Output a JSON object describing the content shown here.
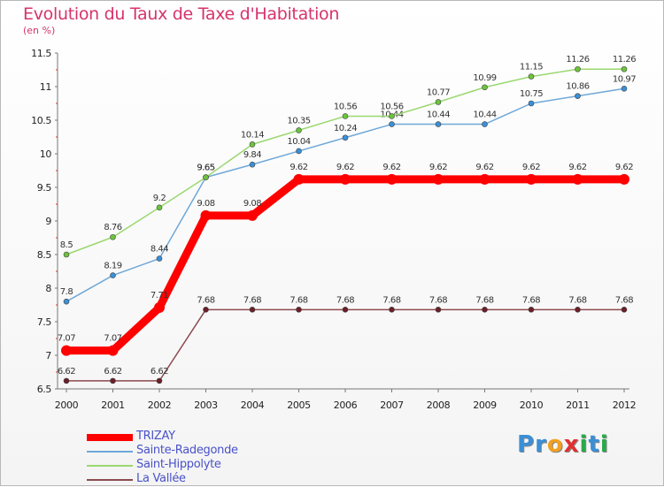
{
  "header": {
    "title": "Evolution du Taux de Taxe d'Habitation",
    "subtitle": "(en %)"
  },
  "logo": {
    "text": "Proxiti",
    "letters": [
      {
        "ch": "P",
        "color": "#3a8fd6"
      },
      {
        "ch": "r",
        "color": "#3a8fd6"
      },
      {
        "ch": "o",
        "color": "#f0a020"
      },
      {
        "ch": "x",
        "color": "#e03030"
      },
      {
        "ch": "i",
        "color": "#2aa84a"
      },
      {
        "ch": "t",
        "color": "#3a8fd6"
      },
      {
        "ch": "i",
        "color": "#2aa84a"
      }
    ]
  },
  "chart_data": {
    "type": "line",
    "x": [
      "2000",
      "2001",
      "2002",
      "2003",
      "2004",
      "2005",
      "2006",
      "2007",
      "2008",
      "2009",
      "2010",
      "2011",
      "2012"
    ],
    "ylim": [
      6.5,
      11.5
    ],
    "yticks": [
      "6.5",
      "7",
      "7.5",
      "8",
      "8.5",
      "9",
      "9.5",
      "10",
      "10.5",
      "11",
      "11.5"
    ],
    "grid": false,
    "legend_position": "bottom-left",
    "series": [
      {
        "name": "La Vallée",
        "color": "#6b1f28",
        "line_color": "#8c4a50",
        "width": 1.5,
        "marker_r": 3,
        "values": [
          6.62,
          6.62,
          6.62,
          7.68,
          7.68,
          7.68,
          7.68,
          7.68,
          7.68,
          7.68,
          7.68,
          7.68,
          7.68
        ],
        "labels": [
          "6.62",
          "6.62",
          "6.62",
          "7.68",
          "7.68",
          "7.68",
          "7.68",
          "7.68",
          "7.68",
          "7.68",
          "7.68",
          "7.68",
          "7.68"
        ]
      },
      {
        "name": "Sainte-Radegonde",
        "color": "#3a8fd6",
        "line_color": "#6fa8d8",
        "width": 1.5,
        "marker_r": 3,
        "values": [
          7.8,
          8.19,
          8.44,
          9.65,
          9.84,
          10.04,
          10.24,
          10.44,
          10.44,
          10.44,
          10.75,
          10.86,
          10.97
        ],
        "labels": [
          "7.8",
          "8.19",
          "8.44",
          "9.65",
          "9.84",
          "10.04",
          "10.24",
          "10.44",
          "10.44",
          "10.44",
          "10.75",
          "10.86",
          "10.97"
        ]
      },
      {
        "name": "Saint-Hippolyte",
        "color": "#6cc43a",
        "line_color": "#9ad870",
        "width": 1.5,
        "marker_r": 3,
        "values": [
          8.5,
          8.76,
          9.2,
          9.65,
          10.14,
          10.35,
          10.56,
          10.56,
          10.77,
          10.99,
          11.15,
          11.26,
          11.26
        ],
        "labels": [
          "8.5",
          "8.76",
          "9.2",
          "9.65",
          "10.14",
          "10.35",
          "10.56",
          "10.56",
          "10.77",
          "10.99",
          "11.15",
          "11.26",
          "11.26"
        ]
      },
      {
        "name": "TRIZAY",
        "color": "#ff0000",
        "line_color": "#ff0000",
        "width": 9,
        "marker_r": 6,
        "values": [
          7.07,
          7.07,
          7.71,
          9.08,
          9.08,
          9.62,
          9.62,
          9.62,
          9.62,
          9.62,
          9.62,
          9.62,
          9.62
        ],
        "labels": [
          "7.07",
          "7.07",
          "7.71",
          "9.08",
          "9.08",
          "9.62",
          "9.62",
          "9.62",
          "9.62",
          "9.62",
          "9.62",
          "9.62",
          "9.62"
        ]
      }
    ],
    "legend": [
      "TRIZAY",
      "Sainte-Radegonde",
      "Saint-Hippolyte",
      "La Vallée"
    ]
  }
}
